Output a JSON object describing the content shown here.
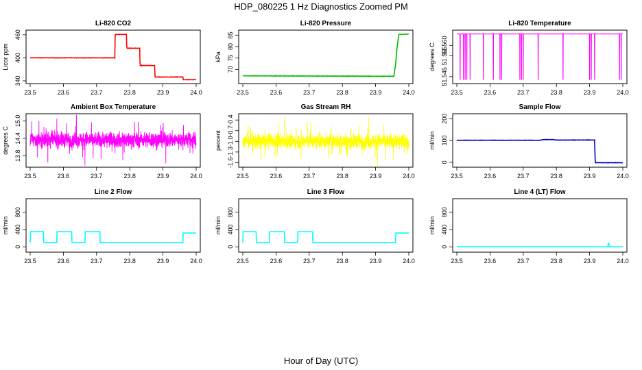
{
  "page": {
    "title": "HDP_080225  1 Hz Diagnostics Zoomed PM",
    "xlabel": "Hour of Day (UTC)"
  },
  "chart_data": [
    {
      "type": "line",
      "title": "Li-820 CO2",
      "ylabel": "Licor ppm",
      "color": "#ff0000",
      "xlim": [
        23.5,
        24.0
      ],
      "ylim": [
        340,
        465
      ],
      "xticks": [
        "23.5",
        "23.6",
        "23.7",
        "23.8",
        "23.9",
        "24.0"
      ],
      "yticks": [
        "340",
        "400",
        "460"
      ],
      "noise": 0.8,
      "series": [
        {
          "x": [
            23.5,
            23.755,
            23.756,
            23.79,
            23.791,
            23.83,
            23.831,
            23.875,
            23.876,
            23.96,
            23.961,
            24.0
          ],
          "y": [
            400,
            400,
            461,
            461,
            425,
            425,
            380,
            380,
            350,
            350,
            343,
            343
          ]
        }
      ]
    },
    {
      "type": "line",
      "title": "Li-820 Pressure",
      "ylabel": "kPa",
      "color": "#00bb00",
      "xlim": [
        23.5,
        24.0
      ],
      "ylim": [
        65,
        86
      ],
      "xticks": [
        "23.5",
        "23.6",
        "23.7",
        "23.8",
        "23.9",
        "24.0"
      ],
      "yticks": [
        "70",
        "75",
        "80",
        "85"
      ],
      "noise": 0.15,
      "series": [
        {
          "x": [
            23.5,
            23.95,
            23.955,
            23.96,
            23.965,
            23.97,
            24.0
          ],
          "y": [
            67.2,
            67,
            66.9,
            72,
            80,
            85.3,
            85.5
          ]
        }
      ]
    },
    {
      "type": "line",
      "title": "Li-820 Temperature",
      "ylabel": "degrees C",
      "color": "#ff00ff",
      "xlim": [
        23.5,
        24.0
      ],
      "ylim": [
        51.543,
        51.566
      ],
      "xticks": [
        "23.5",
        "23.6",
        "23.7",
        "23.8",
        "23.9",
        "24.0"
      ],
      "yticks": [
        "51.545",
        "51.555",
        "51.560"
      ],
      "baseline": 51.5655,
      "low": 51.5435,
      "spikes": [
        23.51,
        23.52,
        23.525,
        23.53,
        23.54,
        23.58,
        23.61,
        23.63,
        23.635,
        23.69,
        23.695,
        23.7,
        23.745,
        23.82,
        23.9,
        23.905,
        23.915,
        23.99,
        23.995
      ]
    },
    {
      "type": "line",
      "title": "Ambient Box Temperature",
      "ylabel": "degrees C",
      "color": "#ff00ff",
      "xlim": [
        23.5,
        24.0
      ],
      "ylim": [
        13.5,
        15.15
      ],
      "xticks": [
        "23.5",
        "23.6",
        "23.7",
        "23.8",
        "23.9",
        "24.0"
      ],
      "yticks": [
        "13.8",
        "14.4",
        "15.0"
      ],
      "mean": 14.35,
      "spread": 0.28
    },
    {
      "type": "line",
      "title": "Gas Stream RH",
      "ylabel": "percent",
      "color": "#ffff00",
      "xlim": [
        23.5,
        24.0
      ],
      "ylim": [
        -1.65,
        -0.3
      ],
      "xticks": [
        "23.5",
        "23.6",
        "23.7",
        "23.8",
        "23.9",
        "24.0"
      ],
      "yticks": [
        "-1.6",
        "-1.3",
        "-1.0",
        "-0.7",
        "-0.4"
      ],
      "mean": -1.0,
      "spread": 0.22
    },
    {
      "type": "line",
      "title": "Sample Flow",
      "ylabel": "ml/min",
      "color": "#0000bb",
      "xlim": [
        23.5,
        24.0
      ],
      "ylim": [
        -10,
        210
      ],
      "xticks": [
        "23.5",
        "23.6",
        "23.7",
        "23.8",
        "23.9",
        "24.0"
      ],
      "yticks": [
        "0",
        "100",
        "200"
      ],
      "noise": 1.2,
      "series": [
        {
          "x": [
            23.5,
            23.75,
            23.76,
            23.79,
            23.8,
            23.915,
            23.917,
            24.0
          ],
          "y": [
            101,
            101,
            104,
            104,
            102,
            102,
            -2,
            -2
          ]
        }
      ]
    },
    {
      "type": "line",
      "title": "Line 2 Flow",
      "ylabel": "ml/min",
      "color": "#00ffff",
      "xlim": [
        23.5,
        24.0
      ],
      "ylim": [
        -60,
        1050
      ],
      "xticks": [
        "23.5",
        "23.6",
        "23.7",
        "23.8",
        "23.9",
        "24.0"
      ],
      "yticks": [
        "0",
        "400",
        "800"
      ],
      "series": [
        {
          "x": [
            23.5,
            23.501,
            23.54,
            23.541,
            23.58,
            23.581,
            23.625,
            23.626,
            23.665,
            23.666,
            23.71,
            23.711,
            23.96,
            23.961,
            24.0
          ],
          "y": [
            100,
            350,
            350,
            100,
            100,
            350,
            350,
            100,
            100,
            350,
            350,
            100,
            100,
            320,
            320
          ]
        }
      ]
    },
    {
      "type": "line",
      "title": "Line 3 Flow",
      "ylabel": "ml/min",
      "color": "#00ffff",
      "xlim": [
        23.5,
        24.0
      ],
      "ylim": [
        -60,
        1050
      ],
      "xticks": [
        "23.5",
        "23.6",
        "23.7",
        "23.8",
        "23.9",
        "24.0"
      ],
      "yticks": [
        "0",
        "400",
        "800"
      ],
      "series": [
        {
          "x": [
            23.5,
            23.501,
            23.54,
            23.541,
            23.58,
            23.581,
            23.625,
            23.626,
            23.665,
            23.666,
            23.71,
            23.711,
            23.96,
            23.961,
            24.0
          ],
          "y": [
            100,
            350,
            350,
            100,
            100,
            350,
            350,
            100,
            100,
            350,
            350,
            100,
            100,
            320,
            320
          ]
        }
      ]
    },
    {
      "type": "line",
      "title": "Line 4 (LT) Flow",
      "ylabel": "ml/min",
      "color": "#00ffff",
      "xlim": [
        23.5,
        24.0
      ],
      "ylim": [
        -60,
        1050
      ],
      "xticks": [
        "23.5",
        "23.6",
        "23.7",
        "23.8",
        "23.9",
        "24.0"
      ],
      "yticks": [
        "0",
        "400",
        "800"
      ],
      "series": [
        {
          "x": [
            23.5,
            23.955,
            23.956,
            23.958,
            23.96,
            24.0
          ],
          "y": [
            0,
            0,
            80,
            80,
            0,
            0
          ]
        }
      ]
    }
  ]
}
